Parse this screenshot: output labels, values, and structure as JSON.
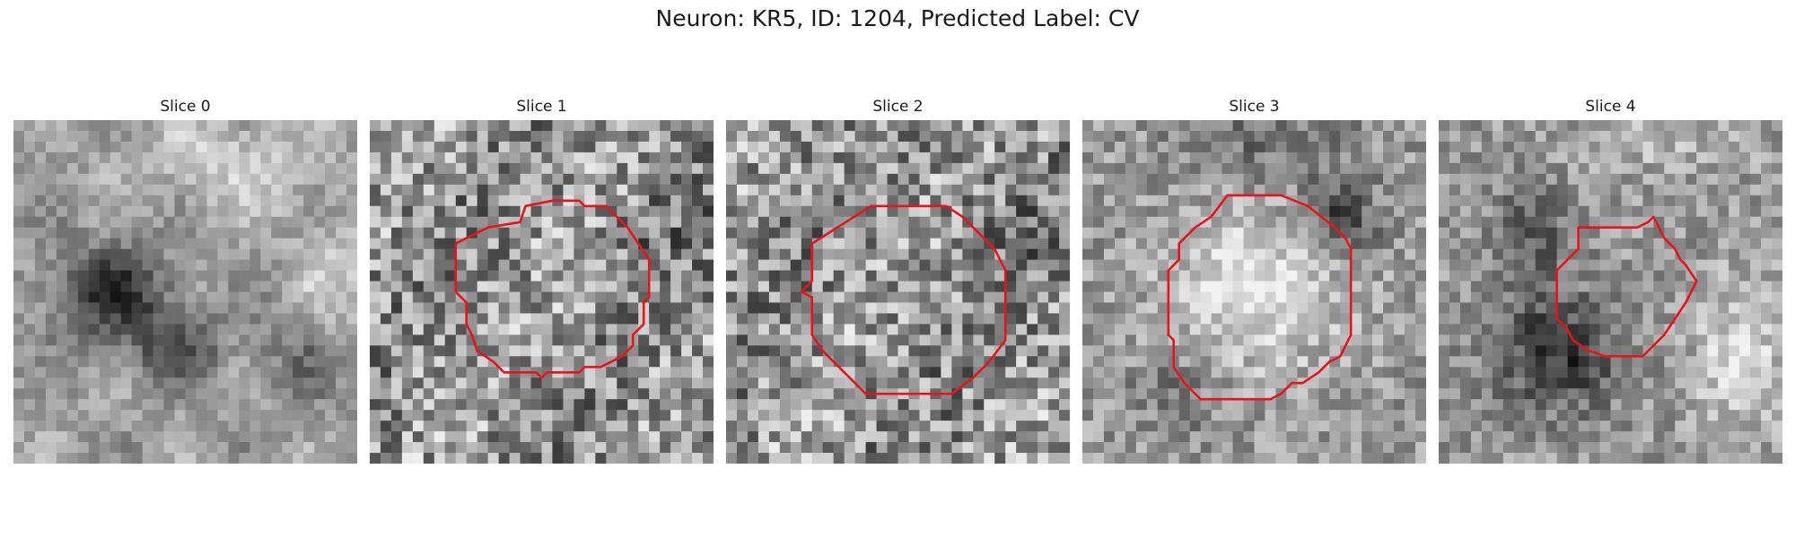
{
  "figure": {
    "title": "Neuron: KR5, ID: 1204, Predicted Label: CV"
  },
  "panels": [
    {
      "title": "Slice 0",
      "texture": "smooth-dark-blob",
      "has_contour": false
    },
    {
      "title": "Slice 1",
      "texture": "noisy",
      "has_contour": true,
      "contour_color": "#e8141b"
    },
    {
      "title": "Slice 2",
      "texture": "noisy",
      "has_contour": true,
      "contour_color": "#e8141b"
    },
    {
      "title": "Slice 3",
      "texture": "bright-center",
      "has_contour": true,
      "contour_color": "#e8141b"
    },
    {
      "title": "Slice 4",
      "texture": "dark-lower-left",
      "has_contour": true,
      "contour_color": "#e8141b"
    }
  ],
  "colors": {
    "contour": "#e8141b",
    "colormap": "grayscale"
  }
}
